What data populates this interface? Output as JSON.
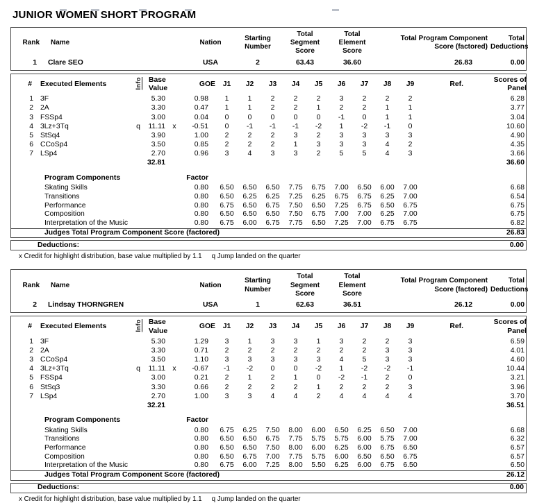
{
  "page_title": "JUNIOR WOMEN SHORT PROGRAM",
  "footnote": {
    "x_credit": "x Credit for highlight distribution, base value multiplied by 1.1",
    "q_note": "q Jump landed on the quarter"
  },
  "labels": {
    "rank": "Rank",
    "name": "Name",
    "nation": "Nation",
    "starting_number": "Starting\nNumber",
    "total_segment_score": "Total\nSegment\nScore",
    "total_element_score": "Total\nElement\nScore",
    "total_program_component": "Total Program Component\nScore (factored)",
    "total_deductions": "Total\nDeductions",
    "hash": "#",
    "executed_elements": "Executed Elements",
    "info": "Info",
    "base_value": "Base\nValue",
    "goe": "GOE",
    "judges": [
      "J1",
      "J2",
      "J3",
      "J4",
      "J5",
      "J6",
      "J7",
      "J8",
      "J9"
    ],
    "ref": "Ref.",
    "scores_of_panel": "Scores of\nPanel",
    "program_components": "Program Components",
    "factor": "Factor",
    "judges_total": "Judges Total Program Component Score (factored)",
    "deductions": "Deductions:"
  },
  "colors": {
    "border": "#4a4a4a",
    "text": "#000000",
    "background": "#ffffff"
  },
  "skaters": [
    {
      "rank": "1",
      "name": "Clare SEO",
      "nation": "USA",
      "starting_number": "2",
      "total_segment_score": "63.43",
      "total_element_score": "36.60",
      "total_program_component_score": "26.83",
      "total_deductions": "0.00",
      "elements": [
        {
          "num": "1",
          "name": "3F",
          "info": "",
          "base": "5.30",
          "x": "",
          "goe": "0.98",
          "judges": [
            "1",
            "1",
            "2",
            "2",
            "2",
            "3",
            "2",
            "2",
            "2"
          ],
          "panel": "6.28"
        },
        {
          "num": "2",
          "name": "2A",
          "info": "",
          "base": "3.30",
          "x": "",
          "goe": "0.47",
          "judges": [
            "1",
            "1",
            "2",
            "2",
            "1",
            "2",
            "2",
            "1",
            "1"
          ],
          "panel": "3.77"
        },
        {
          "num": "3",
          "name": "FSSp4",
          "info": "",
          "base": "3.00",
          "x": "",
          "goe": "0.04",
          "judges": [
            "0",
            "0",
            "0",
            "0",
            "0",
            "-1",
            "0",
            "1",
            "1"
          ],
          "panel": "3.04"
        },
        {
          "num": "4",
          "name": "3Lz+3Tq",
          "info": "q",
          "base": "11.11",
          "x": "x",
          "goe": "-0.51",
          "judges": [
            "0",
            "-1",
            "-1",
            "-1",
            "-2",
            "1",
            "-2",
            "-1",
            "0"
          ],
          "panel": "10.60"
        },
        {
          "num": "5",
          "name": "StSq4",
          "info": "",
          "base": "3.90",
          "x": "",
          "goe": "1.00",
          "judges": [
            "2",
            "2",
            "2",
            "3",
            "2",
            "3",
            "3",
            "3",
            "3"
          ],
          "panel": "4.90"
        },
        {
          "num": "6",
          "name": "CCoSp4",
          "info": "",
          "base": "3.50",
          "x": "",
          "goe": "0.85",
          "judges": [
            "2",
            "2",
            "2",
            "1",
            "3",
            "3",
            "3",
            "4",
            "2"
          ],
          "panel": "4.35"
        },
        {
          "num": "7",
          "name": "LSp4",
          "info": "",
          "base": "2.70",
          "x": "",
          "goe": "0.96",
          "judges": [
            "3",
            "4",
            "3",
            "3",
            "2",
            "5",
            "5",
            "4",
            "3"
          ],
          "panel": "3.66"
        }
      ],
      "base_value_total": "32.81",
      "element_score_total": "36.60",
      "components": [
        {
          "name": "Skating Skills",
          "factor": "0.80",
          "judges": [
            "6.50",
            "6.50",
            "6.50",
            "7.75",
            "6.75",
            "7.00",
            "6.50",
            "6.00",
            "7.00"
          ],
          "panel": "6.68"
        },
        {
          "name": "Transitions",
          "factor": "0.80",
          "judges": [
            "6.50",
            "6.25",
            "6.25",
            "7.25",
            "6.25",
            "6.75",
            "6.75",
            "6.25",
            "7.00"
          ],
          "panel": "6.54"
        },
        {
          "name": "Performance",
          "factor": "0.80",
          "judges": [
            "6.75",
            "6.50",
            "6.75",
            "7.50",
            "6.50",
            "7.25",
            "6.75",
            "6.50",
            "6.75"
          ],
          "panel": "6.75"
        },
        {
          "name": "Composition",
          "factor": "0.80",
          "judges": [
            "6.50",
            "6.50",
            "6.50",
            "7.50",
            "6.75",
            "7.00",
            "7.00",
            "6.25",
            "7.00"
          ],
          "panel": "6.75"
        },
        {
          "name": "Interpretation of the Music",
          "factor": "0.80",
          "judges": [
            "6.75",
            "6.00",
            "6.75",
            "7.75",
            "6.50",
            "7.25",
            "7.00",
            "6.75",
            "6.75"
          ],
          "panel": "6.82"
        }
      ],
      "judges_total_factored": "26.83",
      "deduction_value": "0.00"
    },
    {
      "rank": "2",
      "name": "Lindsay THORNGREN",
      "nation": "USA",
      "starting_number": "1",
      "total_segment_score": "62.63",
      "total_element_score": "36.51",
      "total_program_component_score": "26.12",
      "total_deductions": "0.00",
      "elements": [
        {
          "num": "1",
          "name": "3F",
          "info": "",
          "base": "5.30",
          "x": "",
          "goe": "1.29",
          "judges": [
            "3",
            "1",
            "3",
            "3",
            "1",
            "3",
            "2",
            "2",
            "3"
          ],
          "panel": "6.59"
        },
        {
          "num": "2",
          "name": "2A",
          "info": "",
          "base": "3.30",
          "x": "",
          "goe": "0.71",
          "judges": [
            "2",
            "2",
            "2",
            "2",
            "2",
            "2",
            "2",
            "3",
            "3"
          ],
          "panel": "4.01"
        },
        {
          "num": "3",
          "name": "CCoSp4",
          "info": "",
          "base": "3.50",
          "x": "",
          "goe": "1.10",
          "judges": [
            "3",
            "3",
            "3",
            "3",
            "3",
            "4",
            "5",
            "3",
            "3"
          ],
          "panel": "4.60"
        },
        {
          "num": "4",
          "name": "3Lz+3Tq",
          "info": "q",
          "base": "11.11",
          "x": "x",
          "goe": "-0.67",
          "judges": [
            "-1",
            "-2",
            "0",
            "0",
            "-2",
            "1",
            "-2",
            "-2",
            "-1"
          ],
          "panel": "10.44"
        },
        {
          "num": "5",
          "name": "FSSp4",
          "info": "",
          "base": "3.00",
          "x": "",
          "goe": "0.21",
          "judges": [
            "2",
            "1",
            "2",
            "1",
            "0",
            "-2",
            "-1",
            "2",
            "0"
          ],
          "panel": "3.21"
        },
        {
          "num": "6",
          "name": "StSq3",
          "info": "",
          "base": "3.30",
          "x": "",
          "goe": "0.66",
          "judges": [
            "2",
            "2",
            "2",
            "2",
            "1",
            "2",
            "2",
            "2",
            "3"
          ],
          "panel": "3.96"
        },
        {
          "num": "7",
          "name": "LSp4",
          "info": "",
          "base": "2.70",
          "x": "",
          "goe": "1.00",
          "judges": [
            "3",
            "3",
            "4",
            "4",
            "2",
            "4",
            "4",
            "4",
            "4"
          ],
          "panel": "3.70"
        }
      ],
      "base_value_total": "32.21",
      "element_score_total": "36.51",
      "components": [
        {
          "name": "Skating Skills",
          "factor": "0.80",
          "judges": [
            "6.75",
            "6.25",
            "7.50",
            "8.00",
            "6.00",
            "6.50",
            "6.25",
            "6.50",
            "7.00"
          ],
          "panel": "6.68"
        },
        {
          "name": "Transitions",
          "factor": "0.80",
          "judges": [
            "6.50",
            "6.50",
            "6.75",
            "7.75",
            "5.75",
            "5.75",
            "6.00",
            "5.75",
            "7.00"
          ],
          "panel": "6.32"
        },
        {
          "name": "Performance",
          "factor": "0.80",
          "judges": [
            "6.50",
            "6.50",
            "7.50",
            "8.00",
            "6.00",
            "6.25",
            "6.00",
            "6.75",
            "6.50"
          ],
          "panel": "6.57"
        },
        {
          "name": "Composition",
          "factor": "0.80",
          "judges": [
            "6.50",
            "6.75",
            "7.00",
            "7.75",
            "5.75",
            "6.00",
            "6.50",
            "6.50",
            "6.75"
          ],
          "panel": "6.57"
        },
        {
          "name": "Interpretation of the Music",
          "factor": "0.80",
          "judges": [
            "6.75",
            "6.00",
            "7.25",
            "8.00",
            "5.50",
            "6.25",
            "6.00",
            "6.75",
            "6.50"
          ],
          "panel": "6.50"
        }
      ],
      "judges_total_factored": "26.12",
      "deduction_value": "0.00"
    }
  ]
}
